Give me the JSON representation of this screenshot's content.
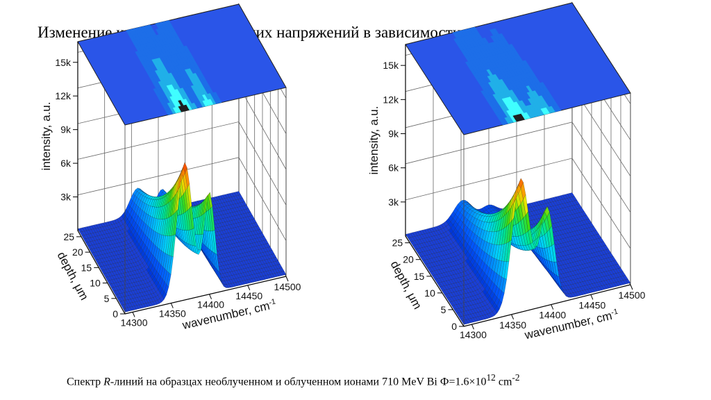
{
  "title": "Изменение компонент внутренних напряжений в зависимости от глубины",
  "caption": {
    "pre": "Спектр ",
    "italic": "R",
    "mid": "-линий на образцах  необлученном и облученном ионами 710 MeV Bi Ф=1.6×10",
    "sup1": "12",
    "unit": " cm",
    "sup2": "-2"
  },
  "chart_data": [
    {
      "type": "surface",
      "panel": "left",
      "ylabel": "intensity, a.u.",
      "xlabel": "wavenumber, cm",
      "xlabel_sup": "-1",
      "depth_label": "depth, μm",
      "z_ticks": [
        "3k",
        "6k",
        "9k",
        "12k",
        "15k"
      ],
      "x_ticks": [
        "14300",
        "14350",
        "14400",
        "14450",
        "14500"
      ],
      "depth_ticks": [
        "0",
        "5",
        "10",
        "15",
        "20",
        "25"
      ],
      "xlim": [
        14290,
        14500
      ],
      "depth_lim": [
        0,
        27
      ],
      "zlim": [
        0,
        16000
      ],
      "series": [
        {
          "center": 14368,
          "sigma": 10,
          "peak": 11500,
          "decay": 0.06
        },
        {
          "center": 14400,
          "sigma": 7,
          "peak": 8500,
          "decay": 0.06
        }
      ]
    },
    {
      "type": "surface",
      "panel": "right",
      "ylabel": "intensity, a.u.",
      "xlabel": "wavenumber, cm",
      "xlabel_sup": "-1",
      "depth_label": "depth, μm",
      "z_ticks": [
        "3k",
        "6k",
        "9k",
        "12k",
        "15k"
      ],
      "x_ticks": [
        "14300",
        "14350",
        "14400",
        "14450",
        "14500"
      ],
      "depth_ticks": [
        "0",
        "5",
        "10",
        "15",
        "20",
        "25"
      ],
      "xlim": [
        14290,
        14500
      ],
      "depth_lim": [
        0,
        27
      ],
      "zlim": [
        0,
        16000
      ],
      "series": [
        {
          "center": 14362,
          "sigma": 11,
          "peak": 11000,
          "decay": 0.07
        },
        {
          "center": 14395,
          "sigma": 9,
          "peak": 8000,
          "decay": 0.09
        }
      ]
    }
  ],
  "colors": {
    "floor": "#1a3fd6",
    "ceiling": "#2a55e8",
    "grid": "#555555",
    "mesh": "#111111"
  }
}
